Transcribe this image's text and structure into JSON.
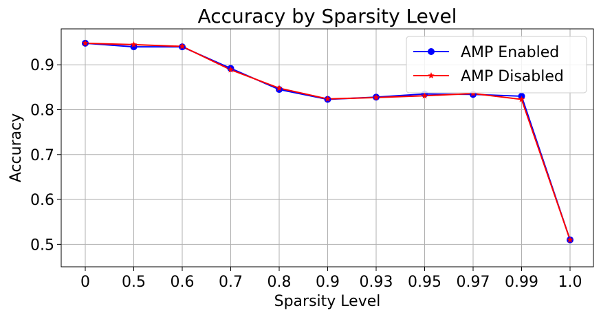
{
  "chart_data": {
    "type": "line",
    "title": "Accuracy by Sparsity Level",
    "xlabel": "Sparsity Level",
    "ylabel": "Accuracy",
    "categories": [
      "0",
      "0.5",
      "0.6",
      "0.7",
      "0.8",
      "0.9",
      "0.93",
      "0.95",
      "0.97",
      "0.99",
      "1.0"
    ],
    "yticks": [
      "0.5",
      "0.6",
      "0.7",
      "0.8",
      "0.9"
    ],
    "ylim": [
      0.45,
      0.98
    ],
    "grid": true,
    "legend_position": "top-right",
    "series": [
      {
        "name": "AMP Enabled",
        "color": "#0000ff",
        "marker": "circle",
        "values": [
          0.948,
          0.94,
          0.94,
          0.892,
          0.845,
          0.823,
          0.828,
          0.835,
          0.834,
          0.83,
          0.51
        ]
      },
      {
        "name": "AMP Disabled",
        "color": "#ff0000",
        "marker": "star",
        "values": [
          0.948,
          0.945,
          0.941,
          0.889,
          0.848,
          0.824,
          0.827,
          0.831,
          0.836,
          0.823,
          0.51
        ]
      }
    ]
  }
}
